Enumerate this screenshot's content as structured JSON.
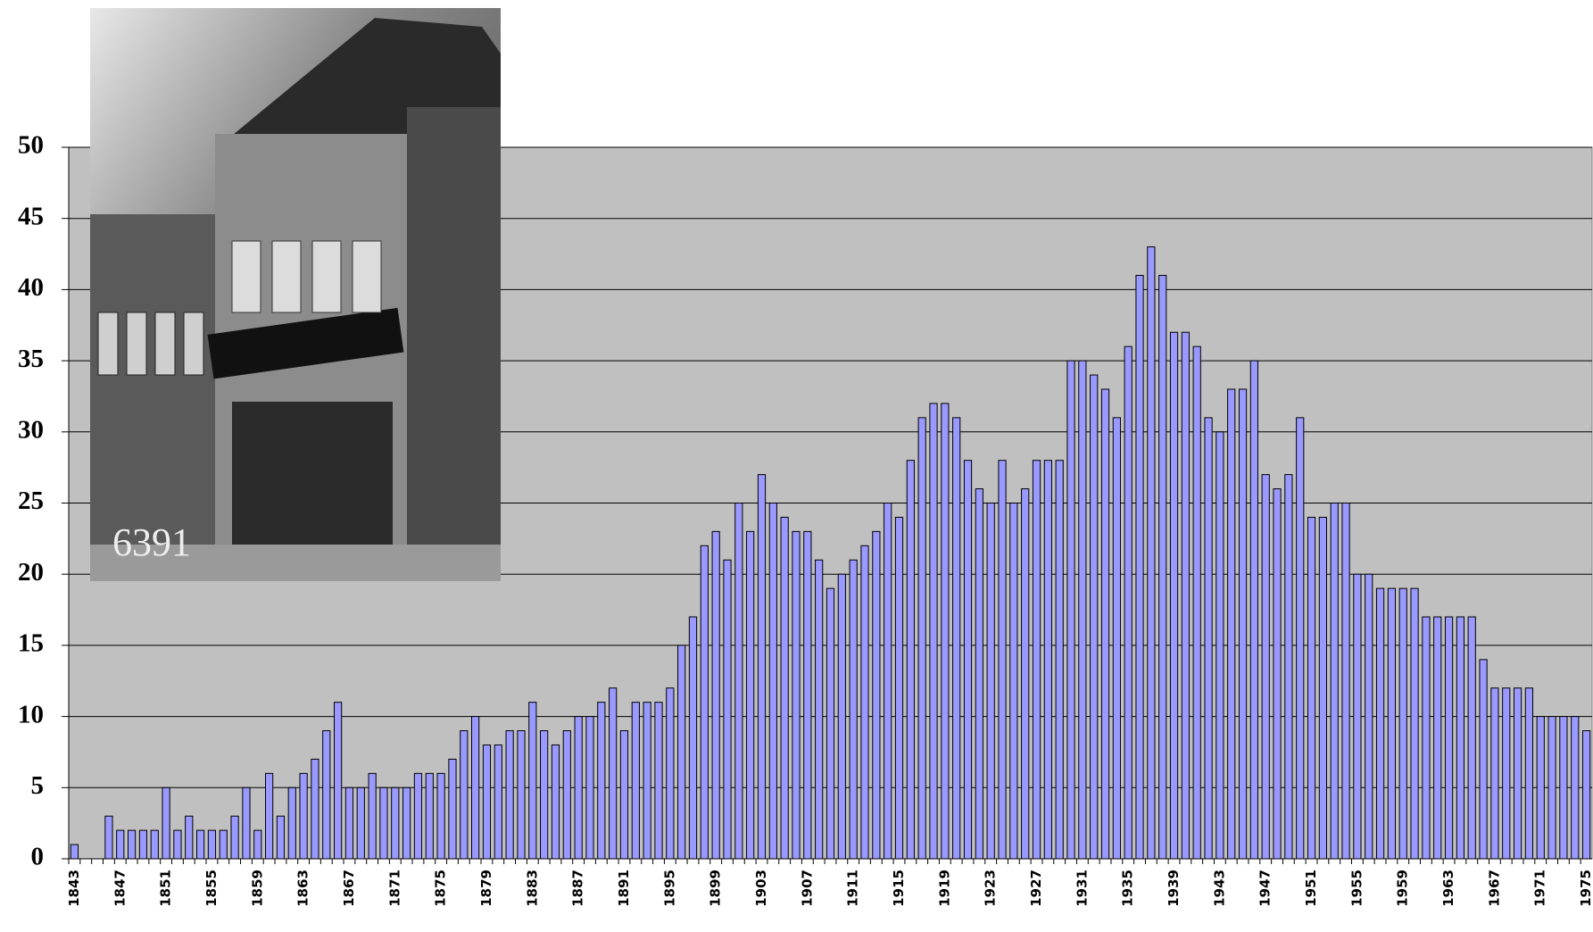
{
  "chart_data": {
    "type": "bar",
    "categories": [
      "1843",
      null,
      null,
      null,
      "1847",
      null,
      null,
      null,
      "1851",
      null,
      null,
      null,
      "1855",
      null,
      null,
      null,
      "1859",
      null,
      null,
      null,
      "1863",
      null,
      null,
      null,
      "1867",
      null,
      null,
      null,
      "1871",
      null,
      null,
      null,
      "1875",
      null,
      null,
      null,
      "1879",
      null,
      null,
      null,
      "1883",
      null,
      null,
      null,
      "1887",
      null,
      null,
      null,
      "1891",
      null,
      null,
      null,
      "1895",
      null,
      null,
      null,
      "1899",
      null,
      null,
      null,
      "1903",
      null,
      null,
      null,
      "1907",
      null,
      null,
      null,
      "1911",
      null,
      null,
      null,
      "1915",
      null,
      null,
      null,
      "1919",
      null,
      null,
      null,
      "1923",
      null,
      null,
      null,
      "1927",
      null,
      null,
      null,
      "1931",
      null,
      null,
      null,
      "1935",
      null,
      null,
      null,
      "1939",
      null,
      null,
      null,
      "1943",
      null,
      null,
      null,
      "1947",
      null,
      null,
      null,
      "1951",
      null,
      null,
      null,
      "1955",
      null,
      null,
      null,
      "1959",
      null,
      null,
      null,
      "1963",
      null,
      null,
      null,
      "1967",
      null,
      null,
      null,
      "1971",
      null,
      null,
      null,
      "1975"
    ],
    "values": [
      1,
      0,
      0,
      3,
      2,
      2,
      2,
      2,
      5,
      2,
      3,
      2,
      2,
      2,
      3,
      5,
      2,
      6,
      3,
      5,
      6,
      7,
      9,
      11,
      5,
      5,
      6,
      5,
      5,
      5,
      6,
      6,
      6,
      7,
      9,
      10,
      8,
      8,
      9,
      9,
      11,
      9,
      8,
      9,
      10,
      10,
      11,
      12,
      9,
      11,
      11,
      11,
      12,
      15,
      17,
      22,
      23,
      21,
      25,
      23,
      27,
      25,
      24,
      23,
      23,
      21,
      19,
      20,
      21,
      22,
      23,
      25,
      24,
      28,
      31,
      32,
      32,
      31,
      28,
      26,
      25,
      28,
      25,
      26,
      28,
      28,
      28,
      35,
      35,
      34,
      33,
      31,
      36,
      41,
      43,
      41,
      37,
      37,
      36,
      31,
      30,
      33,
      33,
      35,
      27,
      26,
      27,
      31,
      24,
      24,
      25,
      25,
      20,
      20,
      19,
      19,
      19,
      19,
      17,
      17,
      17,
      17,
      17,
      14,
      12,
      12,
      12,
      12,
      10,
      10,
      10,
      10,
      9
    ],
    "color": "#9999ff",
    "plot_background": "#c0c0c0",
    "ylim": [
      0,
      50
    ],
    "yticks": [
      0,
      5,
      10,
      15,
      20,
      25,
      30,
      35,
      40,
      45,
      50
    ],
    "grid": true,
    "annotations": [
      "6391"
    ]
  }
}
